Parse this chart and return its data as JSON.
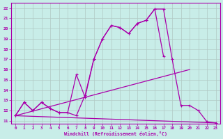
{
  "xlabel": "Windchill (Refroidissement éolien,°C)",
  "bg_color": "#c8ede8",
  "line_color": "#aa00aa",
  "grid_color": "#b0c8c4",
  "xlim": [
    -0.5,
    23.5
  ],
  "ylim": [
    10.7,
    22.5
  ],
  "xticks": [
    0,
    1,
    2,
    3,
    4,
    5,
    6,
    7,
    8,
    9,
    10,
    11,
    12,
    13,
    14,
    15,
    16,
    17,
    18,
    19,
    20,
    21,
    22,
    23
  ],
  "yticks": [
    11,
    12,
    13,
    14,
    15,
    16,
    17,
    18,
    19,
    20,
    21,
    22
  ],
  "series": [
    {
      "x": [
        0,
        1,
        2,
        3,
        4,
        5,
        6,
        7,
        8,
        9,
        10,
        11,
        12,
        13,
        14,
        15,
        16,
        17,
        18,
        19,
        20,
        21,
        22,
        23
      ],
      "y": [
        11.5,
        12.8,
        12.0,
        12.8,
        12.2,
        11.8,
        11.8,
        11.5,
        13.5,
        17.0,
        19.0,
        20.3,
        20.1,
        19.5,
        20.5,
        20.8,
        21.9,
        21.9,
        17.0,
        12.5,
        12.5,
        12.0,
        10.9,
        10.8
      ],
      "markers": true
    },
    {
      "x": [
        0,
        1,
        2,
        3,
        4,
        5,
        6,
        7,
        8,
        9,
        10,
        11,
        12,
        13,
        14,
        15,
        16,
        17
      ],
      "y": [
        11.5,
        12.8,
        12.0,
        12.8,
        12.2,
        11.8,
        11.8,
        15.5,
        13.3,
        17.0,
        19.0,
        20.3,
        20.1,
        19.5,
        20.5,
        20.8,
        21.9,
        17.3
      ],
      "markers": true
    },
    {
      "x": [
        0,
        20
      ],
      "y": [
        11.5,
        16.0
      ],
      "markers": false
    },
    {
      "x": [
        0,
        23
      ],
      "y": [
        11.5,
        10.8
      ],
      "markers": false
    }
  ]
}
